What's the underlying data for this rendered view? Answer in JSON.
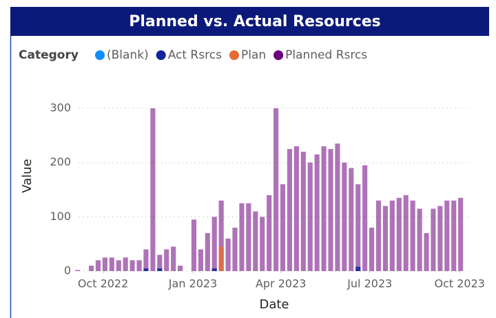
{
  "chart_data": {
    "type": "bar",
    "title": "Planned vs. Actual Resources",
    "legend_title": "Category",
    "x_label": "Date",
    "y_label": "Value",
    "x": [
      "2022-09-05",
      "2022-09-12",
      "2022-09-19",
      "2022-09-26",
      "2022-10-03",
      "2022-10-10",
      "2022-10-17",
      "2022-10-24",
      "2022-10-31",
      "2022-11-07",
      "2022-11-14",
      "2022-11-21",
      "2022-11-28",
      "2022-12-05",
      "2022-12-12",
      "2022-12-19",
      "2022-12-26",
      "2023-01-02",
      "2023-01-09",
      "2023-01-16",
      "2023-01-23",
      "2023-01-30",
      "2023-02-06",
      "2023-02-13",
      "2023-02-20",
      "2023-02-27",
      "2023-03-06",
      "2023-03-13",
      "2023-03-20",
      "2023-03-27",
      "2023-04-03",
      "2023-04-10",
      "2023-04-17",
      "2023-04-24",
      "2023-05-01",
      "2023-05-08",
      "2023-05-15",
      "2023-05-22",
      "2023-05-29",
      "2023-06-05",
      "2023-06-12",
      "2023-06-19",
      "2023-06-26",
      "2023-07-03",
      "2023-07-10",
      "2023-07-17",
      "2023-07-24",
      "2023-07-31",
      "2023-08-07",
      "2023-08-14",
      "2023-08-21",
      "2023-08-28",
      "2023-09-04",
      "2023-09-11",
      "2023-09-18",
      "2023-09-25",
      "2023-10-02"
    ],
    "series": [
      {
        "name": "(Blank)",
        "color": "#118dff",
        "values": [
          null,
          null,
          null,
          null,
          null,
          null,
          null,
          null,
          null,
          null,
          null,
          null,
          null,
          null,
          null,
          null,
          null,
          null,
          null,
          null,
          null,
          null,
          null,
          null,
          null,
          null,
          null,
          null,
          null,
          null,
          null,
          null,
          null,
          null,
          null,
          null,
          null,
          null,
          null,
          null,
          null,
          null,
          null,
          null,
          null,
          null,
          null,
          null,
          null,
          null,
          null,
          null,
          null,
          null,
          null,
          null,
          null
        ]
      },
      {
        "name": "Act Rsrcs",
        "color": "#12239e",
        "values": [
          null,
          null,
          null,
          null,
          null,
          null,
          null,
          null,
          null,
          null,
          5,
          null,
          5,
          null,
          null,
          null,
          null,
          null,
          null,
          null,
          5,
          null,
          null,
          null,
          null,
          null,
          null,
          null,
          null,
          null,
          null,
          null,
          null,
          null,
          null,
          null,
          null,
          null,
          null,
          null,
          null,
          8,
          null,
          null,
          null,
          null,
          null,
          null,
          null,
          null,
          null,
          null,
          null,
          null,
          null,
          null,
          null
        ]
      },
      {
        "name": "Plan",
        "color": "#e66c37",
        "values": [
          null,
          null,
          null,
          null,
          null,
          null,
          null,
          null,
          null,
          null,
          null,
          null,
          null,
          null,
          null,
          null,
          null,
          null,
          null,
          null,
          null,
          45,
          null,
          null,
          null,
          null,
          null,
          null,
          null,
          null,
          null,
          null,
          null,
          null,
          null,
          null,
          null,
          null,
          null,
          null,
          null,
          null,
          null,
          null,
          null,
          null,
          null,
          null,
          null,
          null,
          null,
          null,
          null,
          null,
          null,
          null,
          null
        ]
      },
      {
        "name": "Planned Rsrcs",
        "color": "#6b007b",
        "values": [
          2,
          0,
          10,
          20,
          25,
          25,
          20,
          25,
          20,
          20,
          40,
          300,
          30,
          40,
          45,
          10,
          0,
          95,
          40,
          70,
          100,
          130,
          60,
          80,
          125,
          125,
          110,
          100,
          140,
          300,
          160,
          225,
          230,
          220,
          200,
          215,
          230,
          225,
          235,
          200,
          190,
          160,
          195,
          80,
          130,
          120,
          130,
          135,
          140,
          130,
          115,
          70,
          115,
          120,
          130,
          130,
          135
        ]
      }
    ],
    "xlim": [
      "2022-09-01",
      "2023-10-10"
    ],
    "xticks": [
      {
        "value": "2022-10-01",
        "label": "Oct 2022"
      },
      {
        "value": "2023-01-01",
        "label": "Jan 2023"
      },
      {
        "value": "2023-04-01",
        "label": "Apr 2023"
      },
      {
        "value": "2023-07-01",
        "label": "Jul 2023"
      },
      {
        "value": "2023-10-01",
        "label": "Oct 2023"
      }
    ],
    "ylim": [
      0,
      300
    ],
    "yticks": [
      0,
      100,
      200,
      300
    ],
    "grid": true
  }
}
